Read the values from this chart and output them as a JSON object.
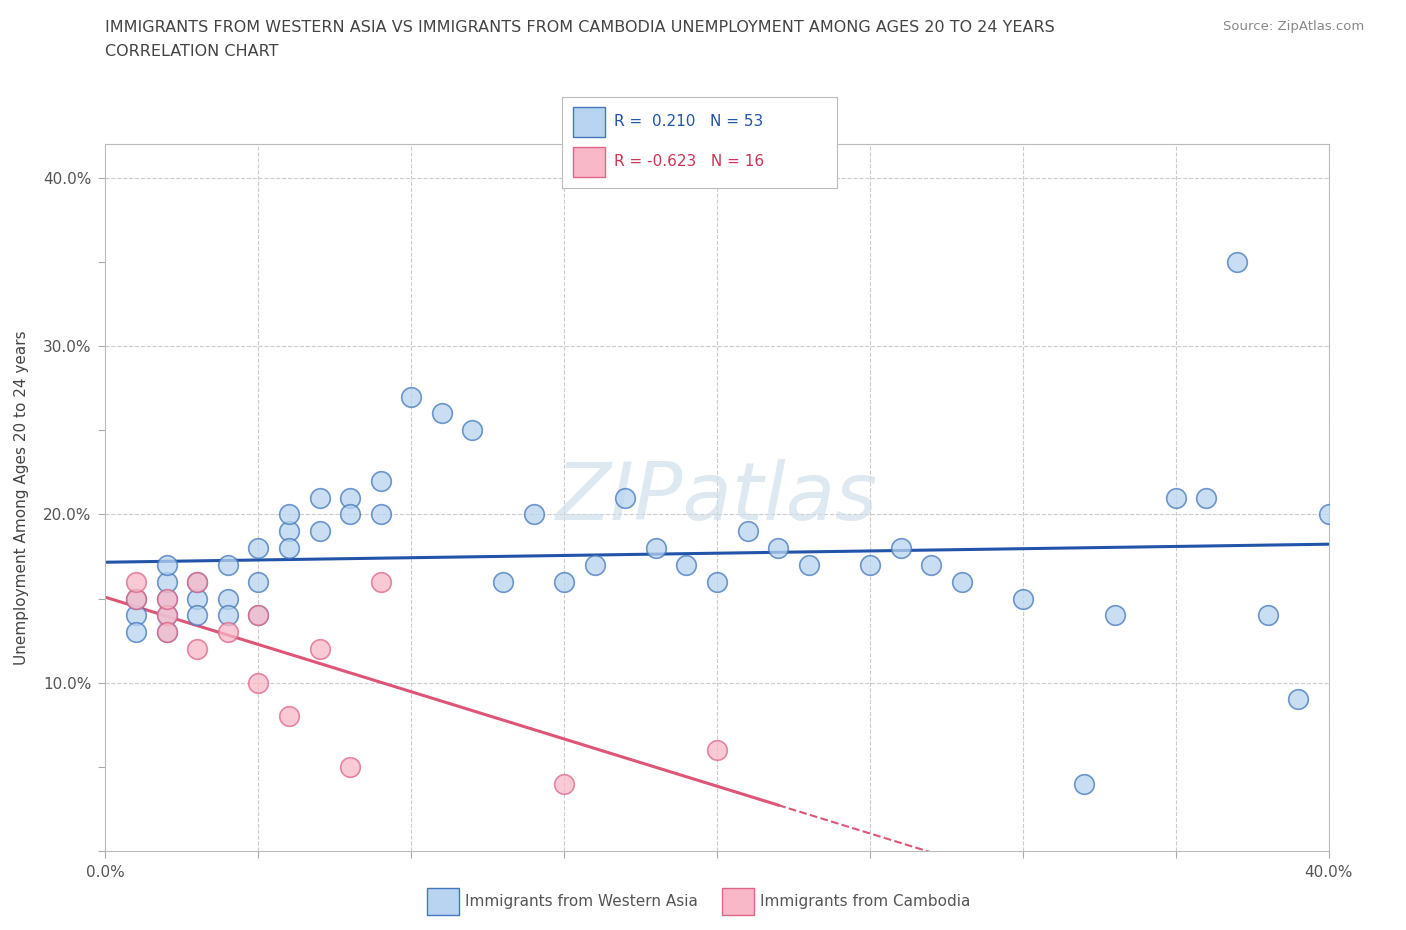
{
  "title_line1": "IMMIGRANTS FROM WESTERN ASIA VS IMMIGRANTS FROM CAMBODIA UNEMPLOYMENT AMONG AGES 20 TO 24 YEARS",
  "title_line2": "CORRELATION CHART",
  "source_text": "Source: ZipAtlas.com",
  "watermark": "ZIPatlas",
  "ylabel": "Unemployment Among Ages 20 to 24 years",
  "xlim": [
    0.0,
    0.4
  ],
  "ylim": [
    0.0,
    0.42
  ],
  "blue_fill": "#b8d4f0",
  "blue_edge": "#4477bb",
  "pink_fill": "#f8b8c8",
  "pink_edge": "#dd6688",
  "blue_line": "#2255aa",
  "pink_line": "#dd5577",
  "legend_r1_color": "#2255aa",
  "legend_r2_color": "#cc3355",
  "background_color": "#ffffff",
  "grid_color": "#cccccc",
  "western_asia_x": [
    0.01,
    0.01,
    0.01,
    0.02,
    0.02,
    0.02,
    0.02,
    0.02,
    0.03,
    0.03,
    0.03,
    0.04,
    0.04,
    0.04,
    0.05,
    0.05,
    0.05,
    0.06,
    0.06,
    0.06,
    0.07,
    0.07,
    0.08,
    0.08,
    0.09,
    0.09,
    0.1,
    0.11,
    0.12,
    0.13,
    0.14,
    0.15,
    0.16,
    0.17,
    0.18,
    0.19,
    0.2,
    0.21,
    0.22,
    0.23,
    0.25,
    0.26,
    0.27,
    0.28,
    0.3,
    0.33,
    0.36,
    0.37,
    0.38,
    0.39,
    0.4,
    0.35,
    0.32
  ],
  "western_asia_y": [
    0.14,
    0.15,
    0.13,
    0.14,
    0.15,
    0.16,
    0.13,
    0.17,
    0.15,
    0.14,
    0.16,
    0.15,
    0.14,
    0.17,
    0.18,
    0.16,
    0.14,
    0.19,
    0.18,
    0.2,
    0.21,
    0.19,
    0.21,
    0.2,
    0.2,
    0.22,
    0.27,
    0.26,
    0.25,
    0.16,
    0.2,
    0.16,
    0.17,
    0.21,
    0.18,
    0.17,
    0.16,
    0.19,
    0.18,
    0.17,
    0.17,
    0.18,
    0.17,
    0.16,
    0.15,
    0.14,
    0.21,
    0.35,
    0.14,
    0.09,
    0.2,
    0.21,
    0.04
  ],
  "cambodia_x": [
    0.01,
    0.01,
    0.02,
    0.02,
    0.02,
    0.03,
    0.03,
    0.04,
    0.05,
    0.05,
    0.06,
    0.07,
    0.08,
    0.09,
    0.15,
    0.2
  ],
  "cambodia_y": [
    0.15,
    0.16,
    0.14,
    0.15,
    0.13,
    0.16,
    0.12,
    0.13,
    0.14,
    0.1,
    0.08,
    0.12,
    0.05,
    0.16,
    0.04,
    0.06
  ],
  "title_fontsize": 11.5,
  "tick_fontsize": 11,
  "label_fontsize": 11
}
